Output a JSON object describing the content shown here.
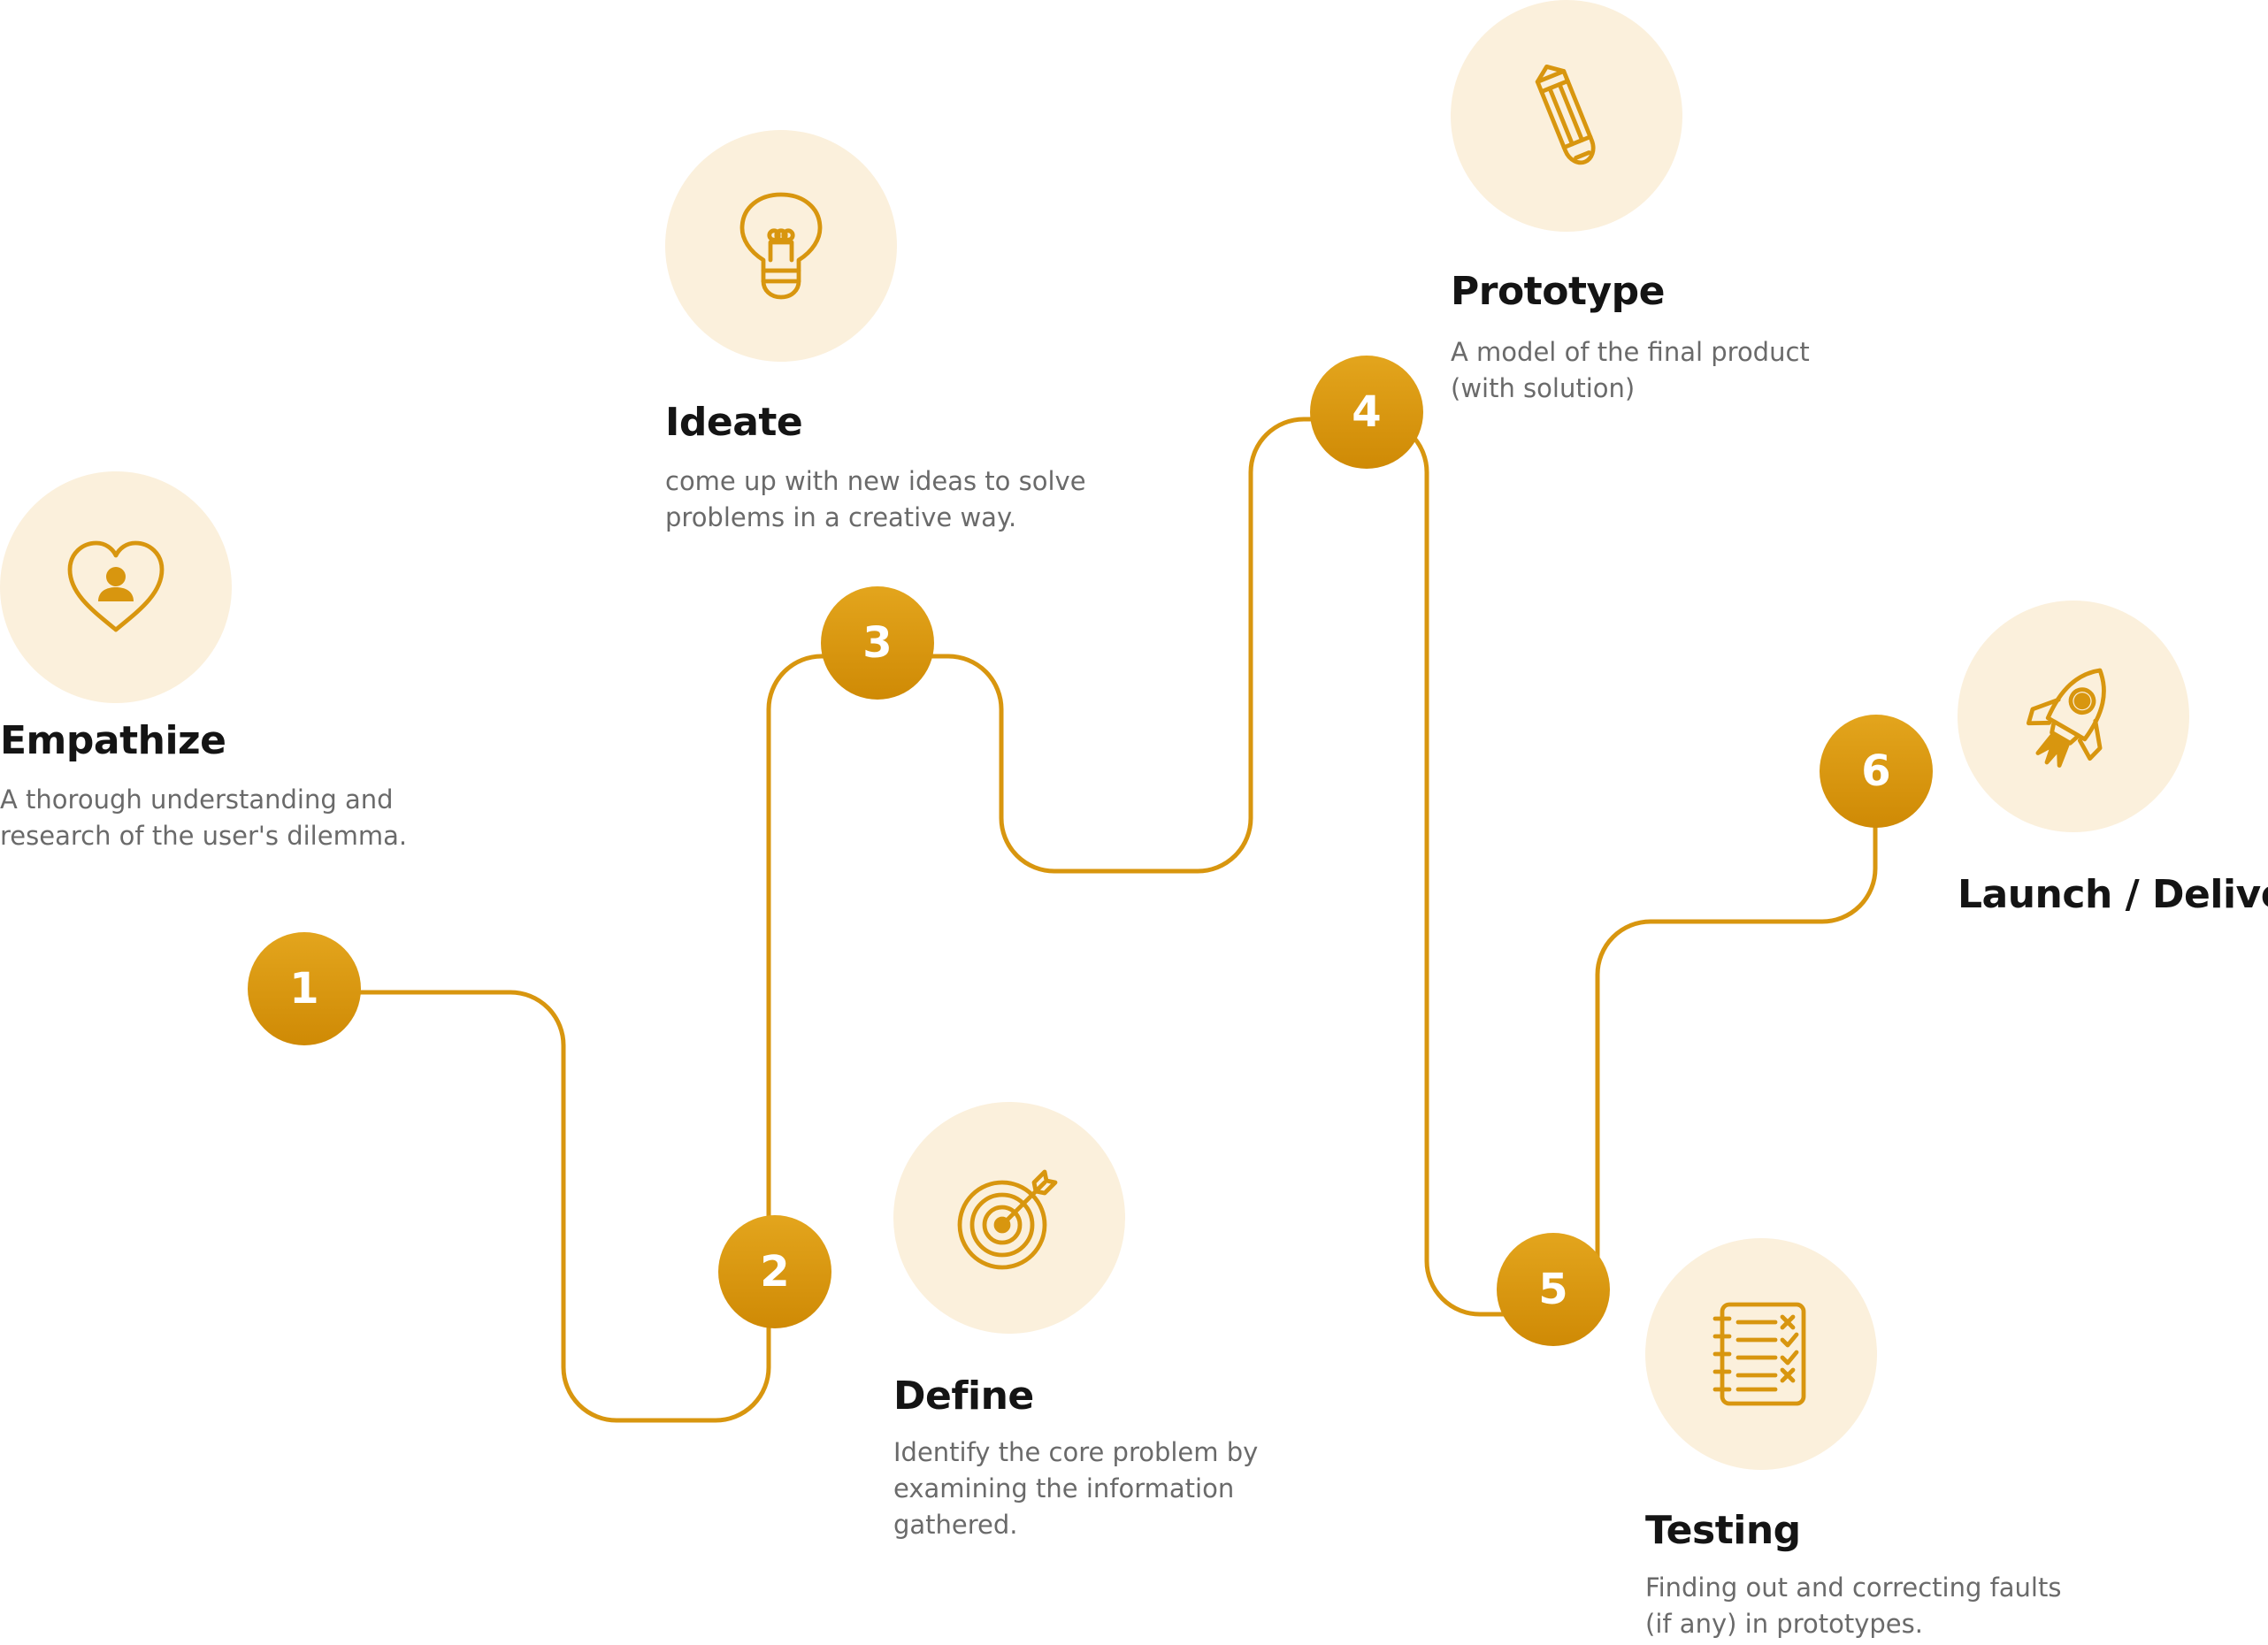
{
  "colors": {
    "accent": "#D8960F",
    "accent_dark": "#CF8A05",
    "icon_bg": "#FBF0DC",
    "title": "#141414",
    "body_text": "#6A6A6A"
  },
  "steps": [
    {
      "number": "1",
      "title": "Empathize",
      "icon": "heart-user-icon",
      "description": [
        "A thorough understanding and",
        "research of the user's dilemma."
      ]
    },
    {
      "number": "2",
      "title": "Define",
      "icon": "target-icon",
      "description": [
        "Identify the core problem by",
        "examining the information",
        "gathered."
      ]
    },
    {
      "number": "3",
      "title": "Ideate",
      "icon": "lightbulb-icon",
      "description": [
        "come up with new ideas to solve",
        "problems in a creative way."
      ]
    },
    {
      "number": "4",
      "title": "Prototype",
      "icon": "pencil-icon",
      "description": [
        "A model of the final product",
        "(with solution)"
      ]
    },
    {
      "number": "5",
      "title": "Testing",
      "icon": "checklist-icon",
      "description": [
        "Finding out and correcting faults",
        "(if any)  in prototypes."
      ]
    },
    {
      "number": "6",
      "title": "Launch / Deliver",
      "icon": "rocket-icon",
      "description": []
    }
  ]
}
